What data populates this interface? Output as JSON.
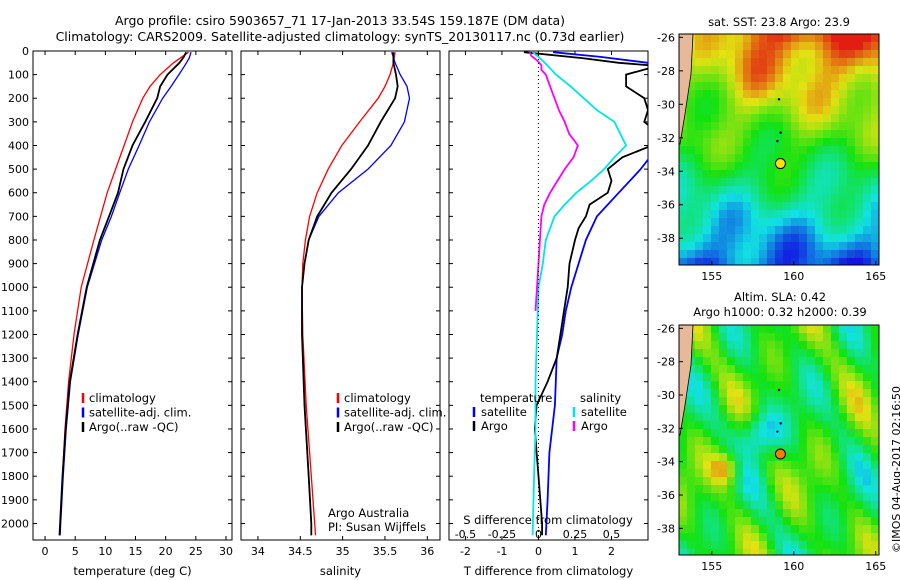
{
  "header": {
    "line1": "Argo profile: csiro 5903657_71 17-Jan-2013 33.54S 159.187E (DM data)",
    "line2": "Climatology: CARS2009. Satellite-adjusted climatology: synTS_20130117.nc (0.73d earlier)"
  },
  "credits": {
    "line1": "Argo Australia",
    "line2": "PI: Susan Wijffels",
    "imos": "©IMOS 04-Aug-2017 02:16:50"
  },
  "colors": {
    "climatology": "#ff0000",
    "satellite": "#0000ff",
    "argo": "#000000",
    "salinity_sat": "#00e5e5",
    "salinity_argo": "#ff00ff"
  },
  "chart_data": [
    {
      "type": "line",
      "panel": "temperature",
      "xlabel": "temperature (deg C)",
      "ylabel": "",
      "xlim": [
        -2,
        31
      ],
      "ylim": [
        2070,
        0
      ],
      "xticks": [
        0,
        5,
        10,
        15,
        20,
        25,
        30
      ],
      "yticks": [
        0,
        100,
        200,
        300,
        400,
        500,
        600,
        700,
        800,
        900,
        1000,
        1100,
        1200,
        1300,
        1400,
        1500,
        1600,
        1700,
        1800,
        1900,
        2000
      ],
      "legend": [
        "climatology",
        "satellite-adj. clim.",
        "Argo(..raw -QC)"
      ],
      "series": [
        {
          "name": "climatology",
          "color": "#ff0000",
          "depth": [
            5,
            50,
            100,
            150,
            200,
            300,
            400,
            500,
            600,
            800,
            1000,
            1200,
            1400,
            1600,
            1800,
            2000,
            2050
          ],
          "values": [
            23.8,
            21.3,
            19.1,
            17.4,
            16.2,
            14.5,
            13.1,
            11.7,
            10.3,
            8.1,
            6.0,
            4.8,
            3.9,
            3.3,
            2.9,
            2.5,
            2.4
          ]
        },
        {
          "name": "satellite-adj. clim.",
          "color": "#0000ff",
          "depth": [
            5,
            30,
            60,
            100,
            150,
            200,
            300,
            400,
            500,
            600,
            700,
            800,
            1000,
            1200,
            1400,
            1600,
            1800,
            2000,
            2050
          ],
          "values": [
            24.2,
            23.9,
            23.2,
            22.2,
            20.9,
            19.5,
            17.3,
            15.6,
            13.8,
            12.4,
            11.0,
            9.4,
            7.0,
            5.5,
            4.2,
            3.5,
            3.0,
            2.6,
            2.5
          ]
        },
        {
          "name": "Argo(..raw -QC)",
          "color": "#000000",
          "depth": [
            5,
            25,
            50,
            100,
            150,
            200,
            300,
            400,
            500,
            600,
            700,
            800,
            1000,
            1200,
            1400,
            1600,
            1800,
            2000,
            2050
          ],
          "values": [
            23.4,
            23.0,
            22.3,
            20.3,
            19.1,
            18.6,
            16.6,
            14.5,
            13.0,
            12.1,
            10.6,
            9.1,
            6.9,
            5.4,
            4.1,
            3.4,
            2.9,
            2.5,
            2.4
          ]
        }
      ]
    },
    {
      "type": "line",
      "panel": "salinity",
      "xlabel": "salinity",
      "xlim": [
        33.8,
        36.15
      ],
      "ylim": [
        2070,
        0
      ],
      "xticks": [
        34,
        34.5,
        35,
        35.5,
        36
      ],
      "legend": [
        "climatology",
        "satellite-adj. clim.",
        "Argo(..raw -QC)"
      ],
      "series": [
        {
          "name": "climatology",
          "color": "#ff0000",
          "depth": [
            5,
            50,
            100,
            150,
            200,
            300,
            400,
            500,
            600,
            700,
            800,
            900,
            1000,
            1200,
            1500,
            1800,
            2000,
            2050
          ],
          "values": [
            35.62,
            35.6,
            35.56,
            35.5,
            35.42,
            35.2,
            34.99,
            34.83,
            34.7,
            34.61,
            34.56,
            34.53,
            34.52,
            34.53,
            34.57,
            34.63,
            34.67,
            34.68
          ]
        },
        {
          "name": "satellite-adj. clim.",
          "color": "#0000ff",
          "depth": [
            5,
            50,
            100,
            150,
            200,
            300,
            400,
            500,
            600,
            700,
            800,
            900,
            1000,
            1200,
            1500,
            1800,
            2000,
            2050
          ],
          "values": [
            35.58,
            35.62,
            35.68,
            35.76,
            35.79,
            35.73,
            35.57,
            35.3,
            34.95,
            34.72,
            34.6,
            34.55,
            34.52,
            34.52,
            34.55,
            34.6,
            34.63,
            34.63
          ]
        },
        {
          "name": "Argo(..raw -QC)",
          "color": "#000000",
          "depth": [
            5,
            50,
            100,
            150,
            200,
            300,
            400,
            500,
            600,
            700,
            800,
            900,
            1000,
            1200,
            1500,
            1800,
            2000,
            2050
          ],
          "values": [
            35.6,
            35.6,
            35.63,
            35.65,
            35.62,
            35.45,
            35.3,
            35.1,
            34.87,
            34.7,
            34.6,
            34.55,
            34.52,
            34.52,
            34.55,
            34.6,
            34.63,
            34.63
          ]
        }
      ]
    },
    {
      "type": "line",
      "panel": "difference",
      "xlabel": "T difference from climatology",
      "xlabel2": "S difference from climatology",
      "xlim": [
        -2.45,
        3.0
      ],
      "ylim": [
        2070,
        0
      ],
      "xticks": [
        -2,
        -1,
        0,
        1,
        2
      ],
      "sticks": [
        "-0.5",
        "-0.25",
        "0",
        "0.25",
        "0.5"
      ],
      "legend_titles": [
        "temperature",
        "salinity"
      ],
      "legend": [
        "satellite",
        "Argo",
        "satellite",
        "Argo"
      ],
      "series": [
        {
          "name": "temperature satellite",
          "color": "#0000ff",
          "depth": [
            5,
            25,
            50,
            75,
            100,
            150,
            200,
            300,
            400,
            500,
            600,
            700,
            800,
            900,
            1000,
            1100,
            1200,
            1300,
            1500,
            1700,
            1900,
            2050
          ],
          "values": [
            0.4,
            1.7,
            3.0,
            3.4,
            3.5,
            3.8,
            3.9,
            3.8,
            3.3,
            2.8,
            2.2,
            1.6,
            1.3,
            1.1,
            0.9,
            0.75,
            0.65,
            0.5,
            0.45,
            0.3,
            0.25,
            0.2
          ]
        },
        {
          "name": "temperature Argo",
          "color": "#000000",
          "depth": [
            5,
            30,
            50,
            60,
            70,
            100,
            150,
            200,
            250,
            300,
            350,
            400,
            450,
            500,
            550,
            600,
            650,
            700,
            750,
            800,
            900,
            1000,
            1100,
            1200,
            1300,
            1400,
            1500,
            1600,
            1700,
            1800,
            1900,
            2000,
            2050
          ],
          "values": [
            -0.4,
            1.2,
            2.2,
            3.0,
            3.1,
            2.4,
            2.4,
            2.9,
            3.0,
            2.9,
            3.3,
            3.1,
            2.3,
            1.9,
            2.0,
            1.9,
            1.4,
            1.3,
            1.1,
            1.0,
            0.85,
            0.8,
            0.7,
            0.6,
            0.5,
            0.25,
            -0.05,
            -0.1,
            -0.05,
            0.0,
            0.05,
            0.1,
            0.1
          ]
        },
        {
          "name": "salinity satellite",
          "color": "#00e5e5",
          "depth": [
            5,
            30,
            60,
            100,
            150,
            200,
            250,
            300,
            350,
            400,
            450,
            500,
            550,
            600,
            650,
            700,
            800,
            900,
            1000,
            1200,
            1400,
            1600,
            1800,
            2050
          ],
          "values": [
            -0.04,
            0.01,
            0.06,
            0.12,
            0.22,
            0.31,
            0.4,
            0.52,
            0.56,
            0.6,
            0.52,
            0.45,
            0.36,
            0.26,
            0.18,
            0.11,
            0.05,
            0.03,
            0.0,
            -0.01,
            -0.02,
            -0.02,
            -0.03,
            -0.04
          ]
        },
        {
          "name": "salinity Argo",
          "color": "#ff00ff",
          "depth": [
            5,
            20,
            40,
            60,
            80,
            100,
            150,
            200,
            250,
            300,
            350,
            400,
            450,
            500,
            550,
            600,
            650,
            700,
            800,
            900,
            1000,
            1100
          ],
          "values": [
            -0.06,
            -0.05,
            -0.01,
            0.02,
            0.02,
            0.05,
            0.08,
            0.11,
            0.14,
            0.18,
            0.21,
            0.27,
            0.24,
            0.18,
            0.13,
            0.08,
            0.04,
            0.02,
            0.01,
            0.0,
            -0.01,
            -0.02
          ]
        }
      ]
    },
    {
      "type": "heatmap",
      "panel": "sst-map",
      "title": "sat. SST: 23.8  Argo: 23.9",
      "xticks": [
        155,
        160,
        165
      ],
      "yticks": [
        -26,
        -28,
        -30,
        -32,
        -34,
        -36,
        -38
      ],
      "xlim": [
        153,
        165.2
      ],
      "ylim": [
        -39.6,
        -25.8
      ],
      "marker": {
        "lon": 159.187,
        "lat": -33.54
      },
      "small_marks": [
        {
          "lon": 159.1,
          "lat": -29.7
        },
        {
          "lon": 159.2,
          "lat": -31.7
        },
        {
          "lon": 159.0,
          "lat": -32.2
        }
      ]
    },
    {
      "type": "heatmap",
      "panel": "sla-map",
      "title": "Altim. SLA: 0.42",
      "title2": "Argo h1000: 0.32 h2000: 0.39",
      "xticks": [
        155,
        160,
        165
      ],
      "yticks": [
        -26,
        -28,
        -30,
        -32,
        -34,
        -36,
        -38
      ],
      "xlim": [
        153,
        165.2
      ],
      "ylim": [
        -39.6,
        -25.8
      ],
      "marker": {
        "lon": 159.187,
        "lat": -33.54
      },
      "small_marks": [
        {
          "lon": 159.1,
          "lat": -29.7
        },
        {
          "lon": 159.2,
          "lat": -31.7
        },
        {
          "lon": 159.0,
          "lat": -32.2
        }
      ]
    }
  ]
}
